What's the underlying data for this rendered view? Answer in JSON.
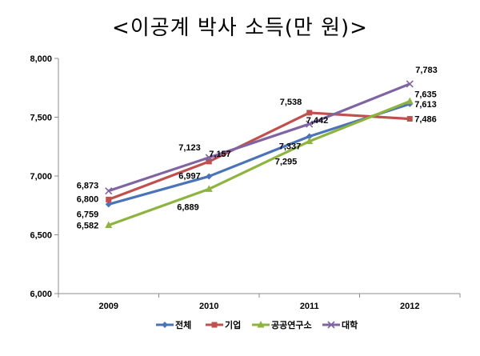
{
  "chart_data": {
    "type": "line",
    "title": "<이공계 박사 소득(만 원)>",
    "categories": [
      "2009",
      "2010",
      "2011",
      "2012"
    ],
    "ylim": [
      6000,
      8000
    ],
    "yticks": [
      "6,000",
      "6,500",
      "7,000",
      "7,500",
      "8,000"
    ],
    "ytick_values": [
      6000,
      6500,
      7000,
      7500,
      8000
    ],
    "grid": false,
    "legend_position": "bottom",
    "series": [
      {
        "name": "전체",
        "color": "#4a73b8",
        "marker": "diamond",
        "values": [
          6759,
          6997,
          7337,
          7613
        ],
        "labels": [
          "6,759",
          "6,997",
          "7,337",
          "7,613"
        ]
      },
      {
        "name": "기업",
        "color": "#c0504d",
        "marker": "square",
        "values": [
          6800,
          7123,
          7538,
          7486
        ],
        "labels": [
          "6,800",
          "7,123",
          "7,538",
          "7,486"
        ]
      },
      {
        "name": "공공연구소",
        "color": "#8db43e",
        "marker": "triangle",
        "values": [
          6582,
          6889,
          7295,
          7635
        ],
        "labels": [
          "6,582",
          "6,889",
          "7,295",
          "7,635"
        ]
      },
      {
        "name": "대학",
        "color": "#8064a2",
        "marker": "x",
        "values": [
          6873,
          7157,
          7442,
          7783
        ],
        "labels": [
          "6,873",
          "7,157",
          "7,442",
          "7,783"
        ]
      }
    ]
  }
}
